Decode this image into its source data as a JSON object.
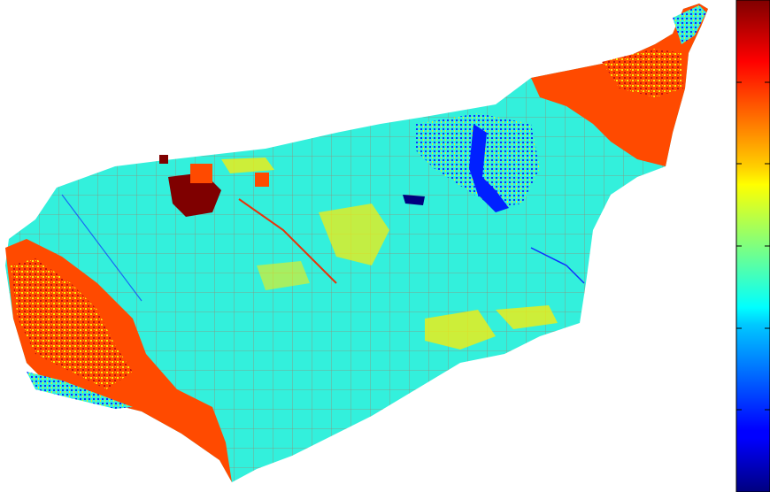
{
  "map": {
    "colormap": "jet",
    "colorbar_ticks": 6,
    "colorbar_orientation": "vertical",
    "colorbar_position": "right",
    "background": "#ffffff",
    "palette": {
      "dark_red": "#7f0000",
      "red": "#e8320a",
      "orange_red": "#ff4a00",
      "orange": "#ff8a00",
      "yellow": "#f4ee10",
      "cyan": "#33f0dc",
      "light_blue": "#1fb8ff",
      "blue": "#0020ff",
      "navy": "#00007f"
    }
  }
}
